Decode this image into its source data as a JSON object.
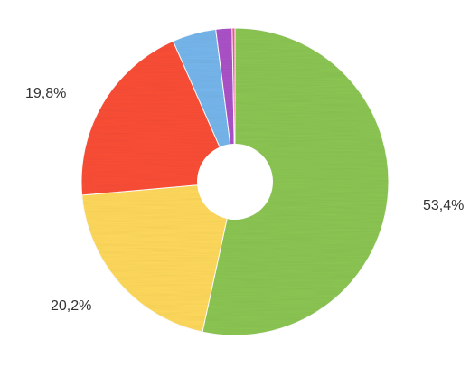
{
  "chart_data": {
    "type": "pie",
    "style": "donut",
    "title": "",
    "legend": "none",
    "slices": [
      {
        "value": 53.4,
        "label": "53,4%",
        "color": "#8cc653"
      },
      {
        "value": 20.2,
        "label": "20,2%",
        "color": "#ffd95c"
      },
      {
        "value": 19.8,
        "label": "19,8%",
        "color": "#fb4e36"
      },
      {
        "value": 4.6,
        "label": "",
        "color": "#76b6ec"
      },
      {
        "value": 1.7,
        "label": "",
        "color": "#ab52c8"
      },
      {
        "value": 0.3,
        "label": "",
        "color": "#f05a8c"
      }
    ]
  }
}
